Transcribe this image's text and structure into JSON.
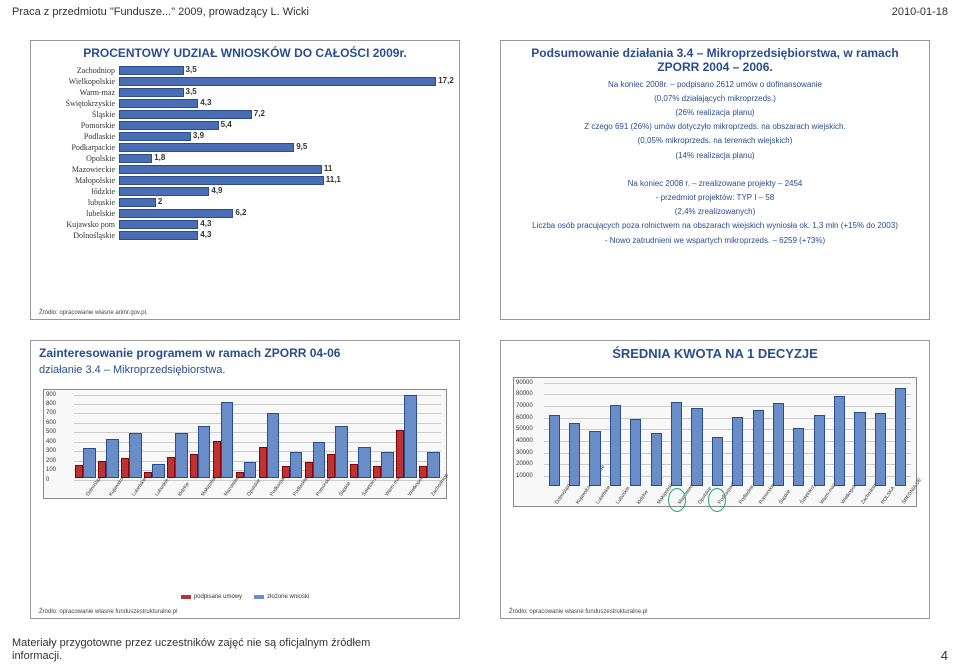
{
  "header": {
    "left": "Praca z przedmiotu \"Fundusze...\" 2009, prowadzący L. Wicki",
    "right": "2010-01-18"
  },
  "footer": {
    "left": "Materiały przygotowne przez uczestników zajęć nie są oficjalnym źródłem informacji.",
    "pageNum": "4"
  },
  "slide1": {
    "title": "PROCENTOWY UDZIAŁ WNIOSKÓW DO CAŁOŚCI 2009r.",
    "source": "Źródło: opracowanie własne  arimr.gov.pl,",
    "rows": [
      {
        "label": "Zachodniop",
        "val": 3.5
      },
      {
        "label": "Wielkopolskie",
        "val": 17.2
      },
      {
        "label": "Warm-maz",
        "val": 3.5
      },
      {
        "label": "Świętokrzyskie",
        "val": 4.3
      },
      {
        "label": "Śląskie",
        "val": 7.2
      },
      {
        "label": "Pomorskie",
        "val": 5.4
      },
      {
        "label": "Podlaskie",
        "val": 3.9
      },
      {
        "label": "Podkarpackie",
        "val": 9.5
      },
      {
        "label": "Opolskie",
        "val": 1.8
      },
      {
        "label": "Mazowieckie",
        "val": 11.0
      },
      {
        "label": "Małopolskie",
        "val": 11.1
      },
      {
        "label": "łódzkie",
        "val": 4.9
      },
      {
        "label": "lubuskie",
        "val": 2.0
      },
      {
        "label": "lubelskie",
        "val": 6.2
      },
      {
        "label": "Kujawsko pom",
        "val": 4.3
      },
      {
        "label": "Dolnośląskie",
        "val": 4.3
      }
    ],
    "bar_color": "#4a6db3",
    "max": 18
  },
  "slide2": {
    "title": "Podsumowanie działania 3.4 – Mikroprzedsiębiorstwa, w ramach ZPORR 2004 – 2006.",
    "lines": [
      "Na koniec 2008r. – podpisano 2612 umów o dofinansowanie",
      "(0,07% działających mikroprzeds.)",
      "(26% realizacja planu)",
      "Z czego 691 (26%) umów dotyczyło mikroprzeds. na obszarach wiejskich.",
      "(0,05% mikroprzeds. na terenach wiejskich)",
      "(14% realizacja planu)",
      "",
      "Na koniec 2008 r. – zrealizowane projekty – 2454",
      "- przedmiot projektów:  TYP I – 58",
      "(2,4% zrealizowanych)",
      "Liczba osób pracujących poza rolnictwem na obszarach wiejskich wyniosła ok. 1,3 mln (+15% do 2003)",
      "- Nowo zatrudnieni we wspartych mikroprzeds. – 6259 (+73%)"
    ]
  },
  "slide3": {
    "title": "Zainteresowanie programem w ramach ZPORR 04-06",
    "subtitle": "działanie 3.4 – Mikroprzedsiębiorstwa.",
    "source": "Źródło: opracowanie własne funduszestrukturalne.pl",
    "yticks": [
      0,
      100,
      200,
      300,
      400,
      500,
      600,
      700,
      800,
      900
    ],
    "ymax": 900,
    "legend": [
      "podpisane umowy",
      "złożone wnioski"
    ],
    "legend_colors": [
      "#b33",
      "#6a8cc7"
    ],
    "cats": [
      "Dolnośląskie",
      "Kujawsko-pom",
      "Lubelskie",
      "Lubuskie",
      "łódzkie",
      "Małopolskie",
      "Mazowieckie",
      "Opolskie",
      "Podkarpackie",
      "Podlaskie",
      "Pomorskie",
      "Śląskie",
      "Świętokrzyskie",
      "Warm-maz",
      "Wielkopolskie",
      "Zachodniop"
    ],
    "series1": [
      140,
      180,
      210,
      60,
      220,
      250,
      400,
      60,
      330,
      120,
      170,
      260,
      150,
      120,
      510,
      120
    ],
    "series2": [
      320,
      420,
      480,
      150,
      480,
      560,
      820,
      170,
      700,
      280,
      380,
      560,
      330,
      280,
      900,
      280
    ]
  },
  "slide4": {
    "title": "ŚREDNIA KWOTA NA 1 DECYZJE",
    "source": "Źródło: opracowanie własne funduszestrukturalne.pl",
    "yticks": [
      10000,
      20000,
      30000,
      40000,
      50000,
      60000,
      70000,
      80000,
      90000
    ],
    "ymax": 90000,
    "cats": [
      "Dolnośląskie",
      "Kujawsko-pomorskie",
      "Lubelskie",
      "Lubuskie",
      "łódzkie",
      "Małopolskie",
      "Mazowieckie",
      "Opolskie",
      "Podkarpackie",
      "Podlaskie",
      "Pomorskie",
      "Śląskie",
      "Świętokrzyskie",
      "Warm-maz",
      "Wielkopolskie",
      "Zachodniopom",
      "POLSKA",
      "ŚREDNIA UE"
    ],
    "vals": [
      62000,
      55000,
      48000,
      70000,
      58000,
      46000,
      73000,
      68000,
      42000,
      60000,
      66000,
      72000,
      50000,
      62000,
      78000,
      64000,
      63000,
      85000
    ],
    "bar_color": "#6a8cc7",
    "circles": [
      6,
      8
    ]
  }
}
